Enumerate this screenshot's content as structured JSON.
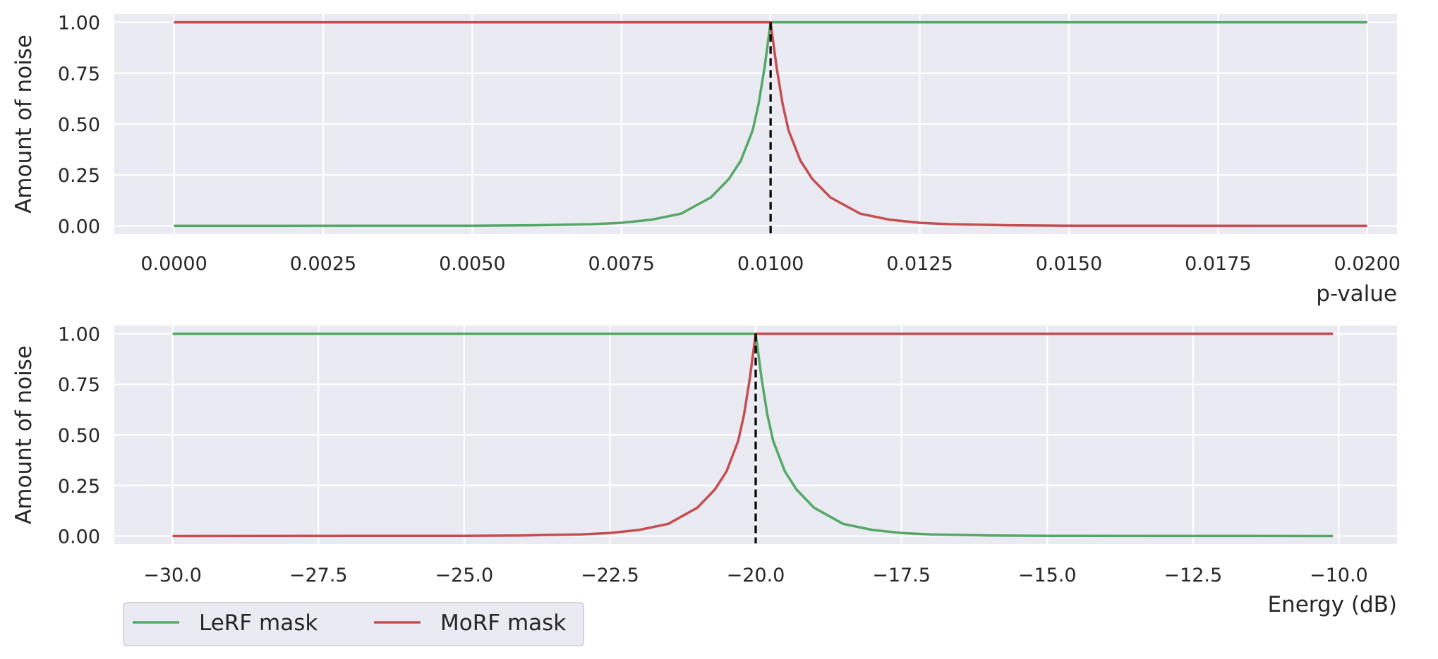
{
  "chart_data": [
    {
      "type": "line",
      "xlabel": "p-value",
      "ylabel": "Amount of noise",
      "xlim": [
        -0.001,
        0.0205
      ],
      "ylim": [
        -0.04,
        1.04
      ],
      "xticks": [
        0.0,
        0.0025,
        0.005,
        0.0075,
        0.01,
        0.0125,
        0.015,
        0.0175,
        0.02
      ],
      "xtick_labels": [
        "0.0000",
        "0.0025",
        "0.0050",
        "0.0075",
        "0.0100",
        "0.0125",
        "0.0150",
        "0.0175",
        "0.0200"
      ],
      "yticks": [
        0,
        0.25,
        0.5,
        0.75,
        1.0
      ],
      "ytick_labels": [
        "0.00",
        "0.25",
        "0.50",
        "0.75",
        "1.00"
      ],
      "grid": true,
      "threshold": 0.01,
      "series": [
        {
          "name": "LeRF mask",
          "color": "#55a868",
          "x": [
            0.0,
            0.005,
            0.006,
            0.007,
            0.0075,
            0.008,
            0.0085,
            0.009,
            0.0093,
            0.0095,
            0.0097,
            0.0098,
            0.0099,
            0.01,
            0.0100001,
            0.015,
            0.02
          ],
          "y": [
            0.0,
            0.001,
            0.003,
            0.008,
            0.015,
            0.03,
            0.06,
            0.14,
            0.23,
            0.32,
            0.47,
            0.6,
            0.78,
            1.0,
            1.0,
            1.0,
            1.0
          ]
        },
        {
          "name": "MoRF mask",
          "color": "#c44e52",
          "x": [
            0.0,
            0.005,
            0.0099999,
            0.01,
            0.0101,
            0.0102,
            0.0103,
            0.0105,
            0.0107,
            0.011,
            0.0115,
            0.012,
            0.0125,
            0.013,
            0.014,
            0.015,
            0.02
          ],
          "y": [
            1.0,
            1.0,
            1.0,
            1.0,
            0.78,
            0.6,
            0.47,
            0.32,
            0.23,
            0.14,
            0.06,
            0.03,
            0.015,
            0.008,
            0.003,
            0.001,
            0.0
          ]
        }
      ]
    },
    {
      "type": "line",
      "xlabel": "Energy (dB)",
      "ylabel": "Amount of noise",
      "xlim": [
        -31.0,
        -9.0
      ],
      "ylim": [
        -0.04,
        1.04
      ],
      "xticks": [
        -30.0,
        -27.5,
        -25.0,
        -22.5,
        -20.0,
        -17.5,
        -15.0,
        -12.5,
        -10.0
      ],
      "xtick_labels": [
        "−30.0",
        "−27.5",
        "−25.0",
        "−22.5",
        "−20.0",
        "−17.5",
        "−15.0",
        "−12.5",
        "−10.0"
      ],
      "yticks": [
        0,
        0.25,
        0.5,
        0.75,
        1.0
      ],
      "ytick_labels": [
        "0.00",
        "0.25",
        "0.50",
        "0.75",
        "1.00"
      ],
      "grid": true,
      "threshold": -20.0,
      "series": [
        {
          "name": "LeRF mask",
          "color": "#55a868",
          "x": [
            -30.0,
            -25.0,
            -20.0001,
            -20.0,
            -19.9,
            -19.8,
            -19.7,
            -19.5,
            -19.3,
            -19.0,
            -18.5,
            -18.0,
            -17.5,
            -17.0,
            -16.0,
            -15.0,
            -10.1
          ],
          "y": [
            1.0,
            1.0,
            1.0,
            1.0,
            0.78,
            0.6,
            0.47,
            0.32,
            0.23,
            0.14,
            0.06,
            0.03,
            0.015,
            0.008,
            0.003,
            0.001,
            0.0
          ]
        },
        {
          "name": "MoRF mask",
          "color": "#c44e52",
          "x": [
            -30.0,
            -25.0,
            -24.0,
            -23.0,
            -22.5,
            -22.0,
            -21.5,
            -21.0,
            -20.7,
            -20.5,
            -20.3,
            -20.2,
            -20.1,
            -20.0,
            -19.9999,
            -15.0,
            -10.1
          ],
          "y": [
            0.0,
            0.001,
            0.003,
            0.008,
            0.015,
            0.03,
            0.06,
            0.14,
            0.23,
            0.32,
            0.47,
            0.6,
            0.78,
            1.0,
            1.0,
            1.0,
            1.0
          ]
        }
      ]
    }
  ],
  "legend": {
    "placement": "bottom-left",
    "entries": [
      {
        "label": "LeRF mask",
        "color": "#55a868"
      },
      {
        "label": "MoRF mask",
        "color": "#c44e52"
      }
    ]
  }
}
